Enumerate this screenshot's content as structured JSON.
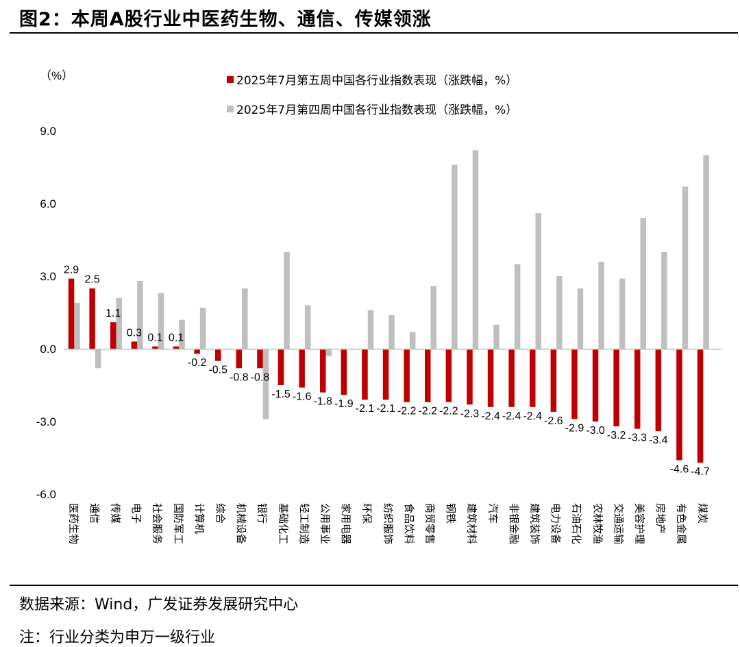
{
  "header": {
    "title": "图2：本周A股行业中医药生物、通信、传媒领涨"
  },
  "footer": {
    "source": "数据来源：Wind，广发证券发展研究中心",
    "note": "注：行业分类为申万一级行业"
  },
  "colors": {
    "series_week5": "#c00000",
    "series_week4": "#bfbfbf",
    "axis": "#bfbfbf"
  },
  "chart_data": {
    "type": "bar",
    "title": "",
    "xlabel": "",
    "ylabel": "",
    "y_unit": "（%）",
    "ylim": [
      -6,
      9
    ],
    "yticks": [
      "9.0",
      "6.0",
      "3.0",
      "0.0",
      "-3.0",
      "-6.0"
    ],
    "grid": false,
    "legend_position": "top-center",
    "categories": [
      "医药生物",
      "通信",
      "传媒",
      "电子",
      "社会服务",
      "国防军工",
      "计算机",
      "综合",
      "机械设备",
      "银行",
      "基础化工",
      "轻工制造",
      "公用事业",
      "家用电器",
      "环保",
      "纺织服饰",
      "食品饮料",
      "商贸零售",
      "钢铁",
      "建筑材料",
      "汽车",
      "非银金融",
      "建筑装饰",
      "电力设备",
      "石油石化",
      "农林牧渔",
      "交通运输",
      "美容护理",
      "房地产",
      "有色金属",
      "煤炭"
    ],
    "series": [
      {
        "name": "2025年7月第五周中国各行业指数表现（涨跌幅，%）",
        "values": [
          2.9,
          2.5,
          1.1,
          0.3,
          0.1,
          0.1,
          -0.2,
          -0.5,
          -0.8,
          -0.8,
          -1.5,
          -1.6,
          -1.8,
          -1.9,
          -2.1,
          -2.1,
          -2.2,
          -2.2,
          -2.2,
          -2.3,
          -2.4,
          -2.4,
          -2.4,
          -2.6,
          -2.9,
          -3.0,
          -3.2,
          -3.3,
          -3.4,
          -4.6,
          -4.7
        ],
        "labels": [
          "2.9",
          "2.5",
          "1.1",
          "0.3",
          "0.1",
          "0.1",
          "-0.2",
          "-0.5",
          "-0.8",
          "-0.8",
          "-1.5",
          "-1.6",
          "-1.8",
          "-1.9",
          "-2.1",
          "-2.1",
          "-2.2",
          "-2.2",
          "-2.2",
          "-2.3",
          "-2.4",
          "-2.4",
          "-2.4",
          "-2.6",
          "-2.9",
          "-3.0",
          "-3.2",
          "-3.3",
          "-3.4",
          "-4.6",
          "-4.7"
        ]
      },
      {
        "name": "2025年7月第四周中国各行业指数表现（涨跌幅，%）",
        "values": [
          1.9,
          -0.8,
          2.1,
          2.8,
          2.3,
          1.2,
          1.7,
          0.0,
          2.5,
          -2.9,
          4.0,
          1.8,
          -0.3,
          0.0,
          1.6,
          1.4,
          0.7,
          2.6,
          7.6,
          8.2,
          1.0,
          3.5,
          5.6,
          3.0,
          2.5,
          3.6,
          2.9,
          5.4,
          4.0,
          6.7,
          8.0
        ]
      }
    ]
  }
}
